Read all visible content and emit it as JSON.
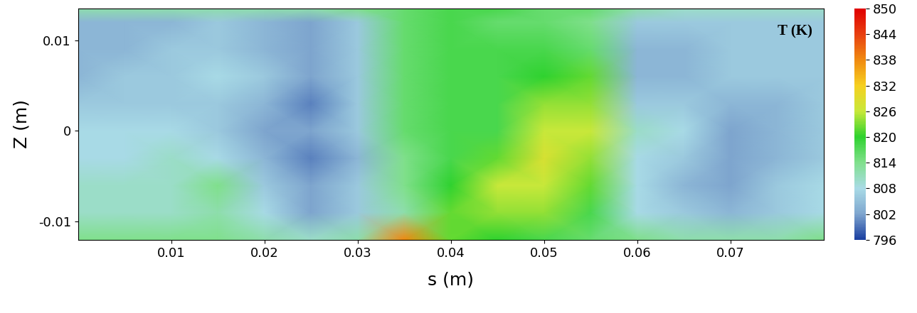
{
  "chart_data": {
    "type": "heatmap",
    "x_label": "s (m)",
    "y_label": "Z (m)",
    "annotation": "T (K)",
    "x": [
      0,
      0.005,
      0.01,
      0.015,
      0.02,
      0.025,
      0.03,
      0.035,
      0.04,
      0.045,
      0.05,
      0.055,
      0.06,
      0.065,
      0.07,
      0.075,
      0.08
    ],
    "y": [
      -0.012,
      -0.009,
      -0.006,
      -0.003,
      0,
      0.003,
      0.006,
      0.009,
      0.012,
      0.0135
    ],
    "cells": [
      [
        814,
        814,
        814,
        814,
        812,
        810,
        812,
        838,
        822,
        820,
        818,
        816,
        814,
        812,
        812,
        812,
        814
      ],
      [
        810,
        810,
        810,
        812,
        808,
        802,
        806,
        812,
        822,
        824,
        824,
        818,
        808,
        806,
        804,
        806,
        808
      ],
      [
        810,
        810,
        810,
        814,
        806,
        802,
        806,
        814,
        820,
        826,
        826,
        822,
        808,
        804,
        802,
        806,
        808
      ],
      [
        808,
        808,
        810,
        808,
        804,
        800,
        804,
        814,
        818,
        822,
        828,
        824,
        808,
        806,
        802,
        804,
        806
      ],
      [
        808,
        808,
        808,
        806,
        802,
        802,
        806,
        816,
        818,
        818,
        826,
        826,
        810,
        808,
        802,
        804,
        806
      ],
      [
        806,
        806,
        806,
        806,
        804,
        800,
        806,
        816,
        818,
        818,
        824,
        824,
        806,
        806,
        804,
        804,
        806
      ],
      [
        804,
        806,
        806,
        808,
        806,
        802,
        806,
        816,
        818,
        818,
        820,
        822,
        804,
        804,
        806,
        806,
        806
      ],
      [
        804,
        804,
        806,
        806,
        804,
        802,
        806,
        816,
        818,
        818,
        818,
        816,
        804,
        804,
        806,
        806,
        806
      ],
      [
        804,
        804,
        804,
        806,
        804,
        802,
        806,
        816,
        818,
        816,
        816,
        814,
        806,
        806,
        806,
        806,
        806
      ],
      [
        812,
        812,
        812,
        812,
        812,
        812,
        814,
        816,
        818,
        818,
        816,
        816,
        812,
        810,
        810,
        810,
        810
      ]
    ],
    "xlim": [
      0,
      0.08
    ],
    "ylim": [
      -0.012,
      0.0135
    ],
    "xticks": [
      0.01,
      0.02,
      0.03,
      0.04,
      0.05,
      0.06,
      0.07
    ],
    "yticks": [
      -0.01,
      0,
      0.01
    ],
    "colorbar_range": [
      796,
      850
    ],
    "colorbar_ticks": [
      796,
      802,
      808,
      814,
      820,
      826,
      832,
      838,
      844,
      850
    ]
  }
}
